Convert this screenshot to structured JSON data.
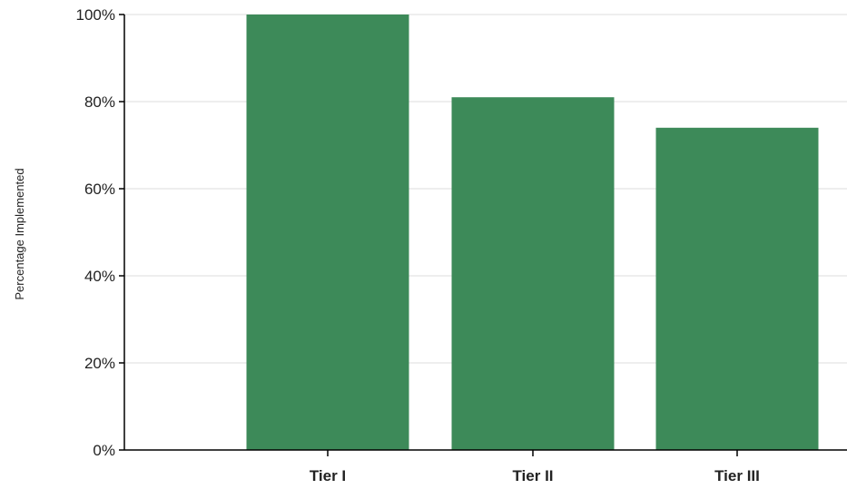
{
  "chart_data": {
    "type": "bar",
    "title": "",
    "xlabel": "",
    "ylabel": "Percentage Implemented",
    "categories": [
      "Tier I",
      "Tier II",
      "Tier III"
    ],
    "values": [
      100,
      81,
      74
    ],
    "ylim": [
      0,
      100
    ],
    "y_ticks": [
      0,
      20,
      40,
      60,
      80,
      100
    ],
    "y_tick_labels": [
      "0%",
      "20%",
      "40%",
      "60%",
      "80%",
      "100%"
    ],
    "grid": true,
    "legend": "none",
    "colors": {
      "bar": "#3d8a59",
      "grid": "#dddddd",
      "axis": "#000000"
    }
  }
}
